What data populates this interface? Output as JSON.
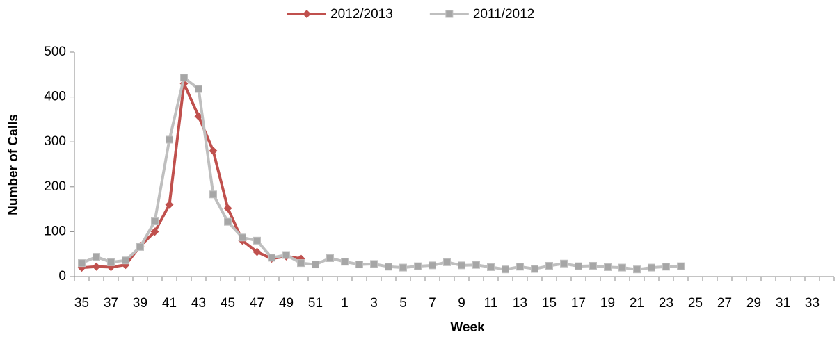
{
  "chart_data": {
    "type": "line",
    "x_label": "Week",
    "y_label": "Number of Calls",
    "categories": [
      "35",
      null,
      "37",
      null,
      "39",
      null,
      "41",
      null,
      "43",
      null,
      "45",
      null,
      "47",
      null,
      "49",
      null,
      "51",
      null,
      "1",
      null,
      "3",
      null,
      "5",
      null,
      "7",
      null,
      "9",
      null,
      "11",
      null,
      "13",
      null,
      "15",
      null,
      "17",
      null,
      "19",
      null,
      "21",
      null,
      "23",
      null,
      "25",
      null,
      "27",
      null,
      "29",
      null,
      "31",
      null,
      "33",
      null
    ],
    "series": [
      {
        "name": "2012/2013",
        "color": "#c0504d",
        "marker": "diamond",
        "values": [
          20,
          22,
          21,
          26,
          68,
          100,
          160,
          430,
          357,
          280,
          152,
          80,
          55,
          40,
          45,
          40,
          null,
          null,
          null,
          null,
          null,
          null,
          null,
          null,
          null,
          null,
          null,
          null,
          null,
          null,
          null,
          null,
          null,
          null,
          null,
          null,
          null,
          null,
          null,
          null,
          null,
          null,
          null,
          null,
          null,
          null,
          null,
          null,
          null,
          null,
          null,
          null
        ]
      },
      {
        "name": "2011/2012",
        "color": "#bfbfbf",
        "marker": "square",
        "values": [
          30,
          44,
          32,
          36,
          66,
          123,
          305,
          443,
          418,
          183,
          122,
          87,
          80,
          42,
          48,
          30,
          27,
          41,
          33,
          27,
          28,
          22,
          20,
          23,
          25,
          32,
          25,
          26,
          21,
          16,
          22,
          17,
          24,
          29,
          23,
          24,
          21,
          20,
          16,
          20,
          22,
          23,
          null,
          null,
          null,
          null,
          null,
          null,
          null,
          null,
          null,
          null
        ]
      }
    ],
    "ylim": [
      0,
      500
    ],
    "yticks": [
      0,
      100,
      200,
      300,
      400,
      500
    ],
    "legend": "top",
    "grid": false
  }
}
